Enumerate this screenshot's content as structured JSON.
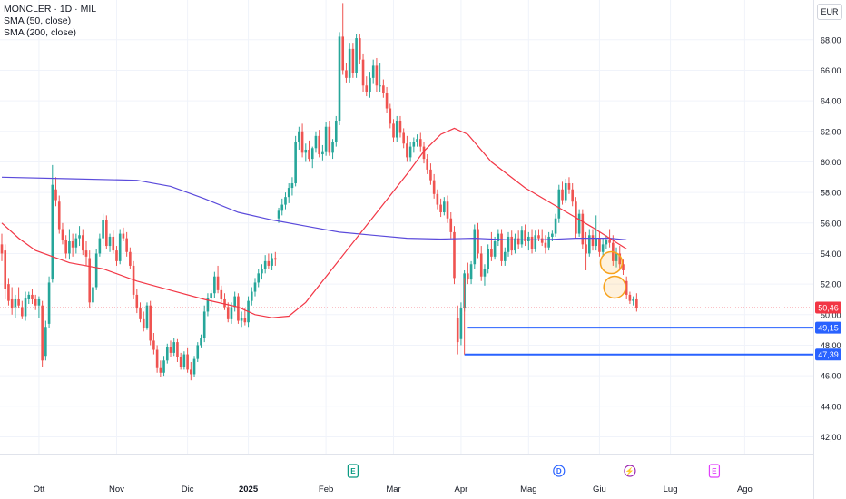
{
  "legend": {
    "line1": "MONCLER · 1D · MIL",
    "line2": "SMA (50, close)",
    "line3": "SMA (200, close)"
  },
  "currency": "EUR",
  "colors": {
    "up": "#26a69a",
    "down": "#ef5350",
    "sma50": "#f23645",
    "sma200": "#5b4bdb",
    "support": "#2962ff",
    "price_label": "#f23645",
    "highlight": "#f7a21b",
    "event_earnings": "#089981",
    "event_dividend": "#2962ff",
    "event_split": "#9c27b0",
    "event_future": "#e040fb",
    "grid": "#f0f3fa",
    "axis_text": "#131722"
  },
  "chart_data": {
    "type": "candlestick",
    "title": "MONCLER · 1D · MIL",
    "ylim": [
      40.9,
      70.6
    ],
    "y_ticks": [
      "42,00",
      "44,00",
      "46,00",
      "48,00",
      "50,00",
      "52,00",
      "54,00",
      "56,00",
      "58,00",
      "60,00",
      "62,00",
      "64,00",
      "66,00",
      "68,00"
    ],
    "x_ticks": [
      {
        "label": "Ott",
        "idx": 11
      },
      {
        "label": "Nov",
        "idx": 34
      },
      {
        "label": "Dic",
        "idx": 55
      },
      {
        "label": "2025",
        "idx": 73,
        "bold": true
      },
      {
        "label": "Feb",
        "idx": 96
      },
      {
        "label": "Mar",
        "idx": 116
      },
      {
        "label": "Apr",
        "idx": 136
      },
      {
        "label": "Mag",
        "idx": 156
      },
      {
        "label": "Giu",
        "idx": 177
      },
      {
        "label": "Lug",
        "idx": 198
      },
      {
        "label": "Ago",
        "idx": 220
      }
    ],
    "last_price": "50,46",
    "support_levels": [
      {
        "label": "49,15",
        "value": 49.15,
        "from_idx": 138
      },
      {
        "label": "47,39",
        "value": 47.39,
        "from_idx": 137
      }
    ],
    "highlights": [
      {
        "idx": 180.5,
        "value": 53.4
      },
      {
        "idx": 181.5,
        "value": 51.8
      }
    ],
    "events": [
      {
        "type": "earnings",
        "letter": "E",
        "idx": 104
      },
      {
        "type": "dividend",
        "letter": "D",
        "idx": 165
      },
      {
        "type": "split",
        "letter": "⚡",
        "idx": 186
      },
      {
        "type": "future",
        "letter": "E",
        "idx": 211
      }
    ],
    "sma200_points": [
      [
        0,
        59.0
      ],
      [
        20,
        58.9
      ],
      [
        40,
        58.8
      ],
      [
        50,
        58.4
      ],
      [
        60,
        57.6
      ],
      [
        70,
        56.7
      ],
      [
        80,
        56.2
      ],
      [
        90,
        55.8
      ],
      [
        100,
        55.4
      ],
      [
        110,
        55.2
      ],
      [
        120,
        55.0
      ],
      [
        130,
        54.95
      ],
      [
        140,
        55.0
      ],
      [
        150,
        54.9
      ],
      [
        160,
        54.9
      ],
      [
        170,
        55.0
      ],
      [
        180,
        55.0
      ],
      [
        185,
        54.9
      ]
    ],
    "sma50_points": [
      [
        0,
        56.0
      ],
      [
        5,
        55.0
      ],
      [
        10,
        54.2
      ],
      [
        20,
        53.4
      ],
      [
        30,
        53.0
      ],
      [
        40,
        52.2
      ],
      [
        50,
        51.6
      ],
      [
        60,
        51.0
      ],
      [
        70,
        50.5
      ],
      [
        75,
        50.0
      ],
      [
        80,
        49.8
      ],
      [
        85,
        49.9
      ],
      [
        90,
        50.8
      ],
      [
        100,
        53.6
      ],
      [
        110,
        56.4
      ],
      [
        120,
        59.2
      ],
      [
        125,
        60.7
      ],
      [
        130,
        61.8
      ],
      [
        134,
        62.2
      ],
      [
        138,
        61.8
      ],
      [
        145,
        60.0
      ],
      [
        155,
        58.3
      ],
      [
        165,
        57.0
      ],
      [
        175,
        55.7
      ],
      [
        180,
        55.0
      ],
      [
        185,
        54.3
      ]
    ],
    "ohlc": [
      [
        54.6,
        55.3,
        53.5,
        54.0
      ],
      [
        54.2,
        54.6,
        51.0,
        51.7
      ],
      [
        52.0,
        52.4,
        50.6,
        50.9
      ],
      [
        51.0,
        51.8,
        50.0,
        50.4
      ],
      [
        50.5,
        51.3,
        49.8,
        51.0
      ],
      [
        51.0,
        51.8,
        50.4,
        50.6
      ],
      [
        50.5,
        50.9,
        49.7,
        49.9
      ],
      [
        49.9,
        51.5,
        49.6,
        51.1
      ],
      [
        51.0,
        51.5,
        50.7,
        51.3
      ],
      [
        51.3,
        51.7,
        50.7,
        51.0
      ],
      [
        51.0,
        51.3,
        50.3,
        50.6
      ],
      [
        50.6,
        51.2,
        49.8,
        51.0
      ],
      [
        50.6,
        50.9,
        46.6,
        47.0
      ],
      [
        47.3,
        49.6,
        47.0,
        49.2
      ],
      [
        49.4,
        52.5,
        49.1,
        52.1
      ],
      [
        52.3,
        59.8,
        52.1,
        58.5
      ],
      [
        58.2,
        59.0,
        57.1,
        57.5
      ],
      [
        57.4,
        57.8,
        55.3,
        55.6
      ],
      [
        55.6,
        56.0,
        54.6,
        54.9
      ],
      [
        54.9,
        55.2,
        53.7,
        54.0
      ],
      [
        54.0,
        55.6,
        53.6,
        54.8
      ],
      [
        54.8,
        55.3,
        53.8,
        54.4
      ],
      [
        54.4,
        55.3,
        54.0,
        55.0
      ],
      [
        55.0,
        55.8,
        54.5,
        55.2
      ],
      [
        55.2,
        55.6,
        53.9,
        54.2
      ],
      [
        54.2,
        54.8,
        53.2,
        53.8
      ],
      [
        53.7,
        54.2,
        50.4,
        50.8
      ],
      [
        50.8,
        52.0,
        50.5,
        51.8
      ],
      [
        51.8,
        54.3,
        51.6,
        54.0
      ],
      [
        54.0,
        55.3,
        53.8,
        55.0
      ],
      [
        55.0,
        56.6,
        54.5,
        56.2
      ],
      [
        56.2,
        56.5,
        54.3,
        54.5
      ],
      [
        54.5,
        55.3,
        54.1,
        55.1
      ],
      [
        55.1,
        55.5,
        54.0,
        54.2
      ],
      [
        54.2,
        54.5,
        53.2,
        53.5
      ],
      [
        53.5,
        55.6,
        53.3,
        55.3
      ],
      [
        55.3,
        55.7,
        54.8,
        55.0
      ],
      [
        55.0,
        55.4,
        53.8,
        54.1
      ],
      [
        54.1,
        54.4,
        53.0,
        53.2
      ],
      [
        53.2,
        53.5,
        51.0,
        51.3
      ],
      [
        51.3,
        51.7,
        50.1,
        50.4
      ],
      [
        50.4,
        50.8,
        49.5,
        49.7
      ],
      [
        49.7,
        50.2,
        48.9,
        49.1
      ],
      [
        49.1,
        50.8,
        49.0,
        50.6
      ],
      [
        50.6,
        50.9,
        48.0,
        48.3
      ],
      [
        48.3,
        48.8,
        47.4,
        47.7
      ],
      [
        47.7,
        48.0,
        46.2,
        46.5
      ],
      [
        46.5,
        47.0,
        45.9,
        46.2
      ],
      [
        46.2,
        47.3,
        46.0,
        47.0
      ],
      [
        47.0,
        48.1,
        46.8,
        47.9
      ],
      [
        47.9,
        48.3,
        47.2,
        47.5
      ],
      [
        47.5,
        48.5,
        47.3,
        48.2
      ],
      [
        48.2,
        48.4,
        46.9,
        47.2
      ],
      [
        47.2,
        47.5,
        46.4,
        46.6
      ],
      [
        46.6,
        47.6,
        46.4,
        47.4
      ],
      [
        47.4,
        47.8,
        46.2,
        46.4
      ],
      [
        46.4,
        46.9,
        45.7,
        46.1
      ],
      [
        46.1,
        47.3,
        45.9,
        47.1
      ],
      [
        47.1,
        48.2,
        46.9,
        48.0
      ],
      [
        48.0,
        48.7,
        47.8,
        48.5
      ],
      [
        48.5,
        50.6,
        48.2,
        50.2
      ],
      [
        50.2,
        51.4,
        49.9,
        51.1
      ],
      [
        51.1,
        51.6,
        50.6,
        51.4
      ],
      [
        51.4,
        52.8,
        51.1,
        52.5
      ],
      [
        52.5,
        53.2,
        51.4,
        51.6
      ],
      [
        51.6,
        51.9,
        50.8,
        51.0
      ],
      [
        51.0,
        51.4,
        50.3,
        50.5
      ],
      [
        50.5,
        50.8,
        49.5,
        49.7
      ],
      [
        49.7,
        50.8,
        49.4,
        50.5
      ],
      [
        50.5,
        51.5,
        50.2,
        51.2
      ],
      [
        51.2,
        51.4,
        49.4,
        49.6
      ],
      [
        49.6,
        50.2,
        49.2,
        49.8
      ],
      [
        49.8,
        50.4,
        49.3,
        49.5
      ],
      [
        49.5,
        51.2,
        49.2,
        50.9
      ],
      [
        50.9,
        51.8,
        50.6,
        51.5
      ],
      [
        51.5,
        52.4,
        51.2,
        52.1
      ],
      [
        52.1,
        53.0,
        51.8,
        52.7
      ],
      [
        52.7,
        53.3,
        52.3,
        53.0
      ],
      [
        53.0,
        53.9,
        52.7,
        53.5
      ],
      [
        53.5,
        54.0,
        53.0,
        53.2
      ],
      [
        53.2,
        54.0,
        52.9,
        53.7
      ],
      [
        53.7,
        54.1,
        53.2,
        53.6
      ],
      [
        56.3,
        57.0,
        56.0,
        56.8
      ],
      [
        56.8,
        57.6,
        56.5,
        57.2
      ],
      [
        57.2,
        58.0,
        56.9,
        57.7
      ],
      [
        57.7,
        58.6,
        57.3,
        58.3
      ],
      [
        58.3,
        59.0,
        57.8,
        58.6
      ],
      [
        58.6,
        61.7,
        58.4,
        61.3
      ],
      [
        61.3,
        62.3,
        60.8,
        62.0
      ],
      [
        62.0,
        62.5,
        60.3,
        60.6
      ],
      [
        60.6,
        61.2,
        60.0,
        60.8
      ],
      [
        60.8,
        61.4,
        60.0,
        60.2
      ],
      [
        60.2,
        61.0,
        59.6,
        60.9
      ],
      [
        60.9,
        62.0,
        60.6,
        61.7
      ],
      [
        61.7,
        62.1,
        60.3,
        60.5
      ],
      [
        60.5,
        61.1,
        60.1,
        60.7
      ],
      [
        60.7,
        62.6,
        60.4,
        62.3
      ],
      [
        62.3,
        62.7,
        60.4,
        60.6
      ],
      [
        60.6,
        61.5,
        60.2,
        61.3
      ],
      [
        61.3,
        63.0,
        61.0,
        62.7
      ],
      [
        62.7,
        68.5,
        62.4,
        68.2
      ],
      [
        68.2,
        70.4,
        65.7,
        66.0
      ],
      [
        66.0,
        66.5,
        65.2,
        65.5
      ],
      [
        65.5,
        67.8,
        65.2,
        67.4
      ],
      [
        67.4,
        67.8,
        65.5,
        65.8
      ],
      [
        65.8,
        68.4,
        65.5,
        68.1
      ],
      [
        68.1,
        68.4,
        66.4,
        66.7
      ],
      [
        66.7,
        67.1,
        64.6,
        65.0
      ],
      [
        65.0,
        65.6,
        64.3,
        64.6
      ],
      [
        64.6,
        65.9,
        64.2,
        65.5
      ],
      [
        65.5,
        66.7,
        65.1,
        66.3
      ],
      [
        66.3,
        66.8,
        64.6,
        65.0
      ],
      [
        65.0,
        66.5,
        64.6,
        65.0
      ],
      [
        65.0,
        65.4,
        64.2,
        64.5
      ],
      [
        64.5,
        64.9,
        63.2,
        63.5
      ],
      [
        63.5,
        63.8,
        62.2,
        62.5
      ],
      [
        62.5,
        62.8,
        61.3,
        61.6
      ],
      [
        61.6,
        63.0,
        61.3,
        62.7
      ],
      [
        62.7,
        63.0,
        61.6,
        61.9
      ],
      [
        61.9,
        62.2,
        60.9,
        61.2
      ],
      [
        61.2,
        61.7,
        60.0,
        60.3
      ],
      [
        60.3,
        61.3,
        60.0,
        61.0
      ],
      [
        61.0,
        61.6,
        60.6,
        61.3
      ],
      [
        61.3,
        61.8,
        61.0,
        61.5
      ],
      [
        61.5,
        61.9,
        60.7,
        61.0
      ],
      [
        61.0,
        61.3,
        59.9,
        60.2
      ],
      [
        60.2,
        60.5,
        59.2,
        59.5
      ],
      [
        59.5,
        59.9,
        58.5,
        58.8
      ],
      [
        58.8,
        59.2,
        57.6,
        57.9
      ],
      [
        57.9,
        58.2,
        56.9,
        57.2
      ],
      [
        57.2,
        57.6,
        56.4,
        56.7
      ],
      [
        56.7,
        57.7,
        56.5,
        57.4
      ],
      [
        57.4,
        57.8,
        56.0,
        56.3
      ],
      [
        56.3,
        56.7,
        55.0,
        55.4
      ],
      [
        55.4,
        55.8,
        52.0,
        52.4
      ],
      [
        49.8,
        50.6,
        47.4,
        48.2
      ],
      [
        48.4,
        50.8,
        48.0,
        50.4
      ],
      [
        50.4,
        52.9,
        50.2,
        52.7
      ],
      [
        52.7,
        53.4,
        52.0,
        52.3
      ],
      [
        52.3,
        53.5,
        52.0,
        53.3
      ],
      [
        53.3,
        55.9,
        53.0,
        55.6
      ],
      [
        55.6,
        56.0,
        53.7,
        54.0
      ],
      [
        54.0,
        54.5,
        52.2,
        52.5
      ],
      [
        52.5,
        53.3,
        51.9,
        53.0
      ],
      [
        53.0,
        54.6,
        52.7,
        54.3
      ],
      [
        54.3,
        55.4,
        53.5,
        53.8
      ],
      [
        53.8,
        55.1,
        53.6,
        54.8
      ],
      [
        54.8,
        55.6,
        54.5,
        55.3
      ],
      [
        55.3,
        55.6,
        53.2,
        53.5
      ],
      [
        53.5,
        54.4,
        53.2,
        54.1
      ],
      [
        54.1,
        55.4,
        53.8,
        55.1
      ],
      [
        55.1,
        55.5,
        53.9,
        54.2
      ],
      [
        54.2,
        55.3,
        54.0,
        55.0
      ],
      [
        55.0,
        55.5,
        54.3,
        54.6
      ],
      [
        54.6,
        55.8,
        54.4,
        55.5
      ],
      [
        55.5,
        55.9,
        54.5,
        54.8
      ],
      [
        54.8,
        55.4,
        54.2,
        55.1
      ],
      [
        55.1,
        55.6,
        54.0,
        54.3
      ],
      [
        54.3,
        55.5,
        54.1,
        55.2
      ],
      [
        55.2,
        55.6,
        54.8,
        55.0
      ],
      [
        55.0,
        55.6,
        54.5,
        54.7
      ],
      [
        54.7,
        55.2,
        54.0,
        54.4
      ],
      [
        54.4,
        55.4,
        54.2,
        55.1
      ],
      [
        55.1,
        55.5,
        54.8,
        55.3
      ],
      [
        55.3,
        56.6,
        55.1,
        56.3
      ],
      [
        56.3,
        58.5,
        56.0,
        58.2
      ],
      [
        58.2,
        58.7,
        57.2,
        57.5
      ],
      [
        57.5,
        58.9,
        57.3,
        58.6
      ],
      [
        58.6,
        59.0,
        57.9,
        58.2
      ],
      [
        58.2,
        58.6,
        57.1,
        57.4
      ],
      [
        57.4,
        57.7,
        55.0,
        55.3
      ],
      [
        55.3,
        56.9,
        55.1,
        56.6
      ],
      [
        56.6,
        56.9,
        54.3,
        54.6
      ],
      [
        54.6,
        55.4,
        52.9,
        54.0
      ],
      [
        54.0,
        55.6,
        53.8,
        55.2
      ],
      [
        55.2,
        55.6,
        54.2,
        54.5
      ],
      [
        54.5,
        56.5,
        54.2,
        55.0
      ],
      [
        55.0,
        55.4,
        53.8,
        54.1
      ],
      [
        54.1,
        55.0,
        53.8,
        54.6
      ],
      [
        54.6,
        55.2,
        54.3,
        54.9
      ],
      [
        54.9,
        55.6,
        54.4,
        54.7
      ],
      [
        54.7,
        55.2,
        53.2,
        53.5
      ],
      [
        53.5,
        54.4,
        53.1,
        54.0
      ],
      [
        54.0,
        54.5,
        52.9,
        53.3
      ],
      [
        53.3,
        53.6,
        52.6,
        52.9
      ],
      [
        52.2,
        52.5,
        51.0,
        51.3
      ],
      [
        51.3,
        51.5,
        50.7,
        50.9
      ],
      [
        50.9,
        51.2,
        50.6,
        51.0
      ],
      [
        51.0,
        51.4,
        50.2,
        50.46
      ]
    ]
  }
}
